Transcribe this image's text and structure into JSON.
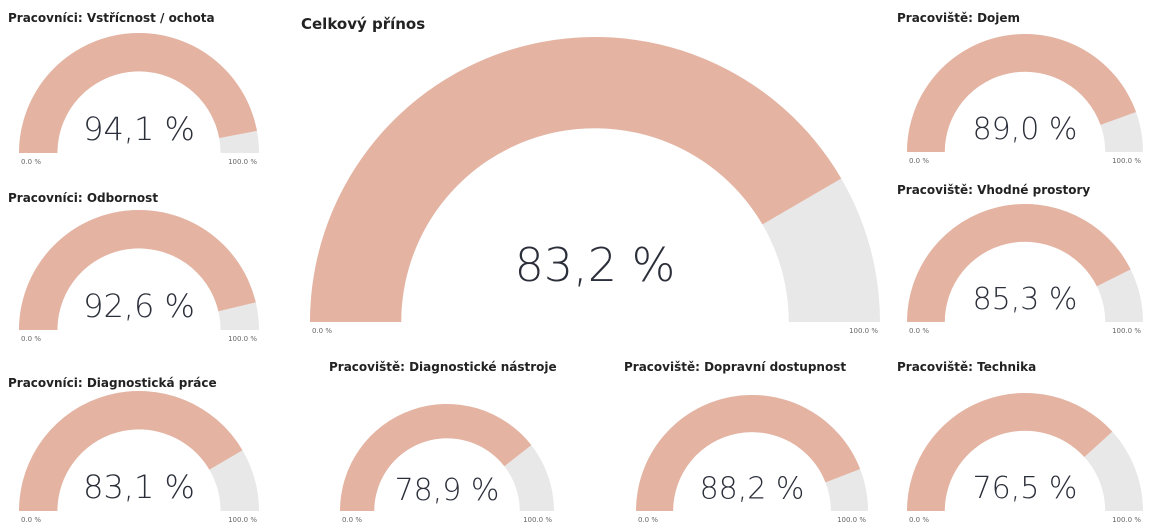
{
  "chart_data": [
    {
      "type": "gauge",
      "title": "Pracovníci: Vstřícnost / ochota",
      "value": 94.1,
      "value_label": "94,1 %",
      "ylim": [
        0,
        100
      ],
      "yticks": [
        {
          "value": 0,
          "label": "0.0 %"
        },
        {
          "value": 100,
          "label": "100.0 %"
        }
      ],
      "color": "#e5b3a1"
    },
    {
      "type": "gauge",
      "title": "Pracovníci: Odbornost",
      "value": 92.6,
      "value_label": "92,6 %",
      "ylim": [
        0,
        100
      ],
      "yticks": [
        {
          "value": 0,
          "label": "0.0 %"
        },
        {
          "value": 100,
          "label": "100.0 %"
        }
      ],
      "color": "#e5b3a1"
    },
    {
      "type": "gauge",
      "title": "Pracovníci: Diagnostická práce",
      "value": 83.1,
      "value_label": "83,1 %",
      "ylim": [
        0,
        100
      ],
      "yticks": [
        {
          "value": 0,
          "label": "0.0 %"
        },
        {
          "value": 100,
          "label": "100.0 %"
        }
      ],
      "color": "#e5b3a1"
    },
    {
      "type": "gauge",
      "title": "Celkový přínos",
      "value": 83.2,
      "value_label": "83,2 %",
      "ylim": [
        0,
        100
      ],
      "yticks": [
        {
          "value": 0,
          "label": "0.0 %"
        },
        {
          "value": 100,
          "label": "100.0 %"
        }
      ],
      "color": "#e5b3a1"
    },
    {
      "type": "gauge",
      "title": "Pracoviště: Diagnostické nástroje",
      "value": 78.9,
      "value_label": "78,9 %",
      "ylim": [
        0,
        100
      ],
      "yticks": [
        {
          "value": 0,
          "label": "0.0 %"
        },
        {
          "value": 100,
          "label": "100.0 %"
        }
      ],
      "color": "#e5b3a1"
    },
    {
      "type": "gauge",
      "title": "Pracoviště: Dopravní dostupnost",
      "value": 88.2,
      "value_label": "88,2 %",
      "ylim": [
        0,
        100
      ],
      "yticks": [
        {
          "value": 0,
          "label": "0.0 %"
        },
        {
          "value": 100,
          "label": "100.0 %"
        }
      ],
      "color": "#e5b3a1"
    },
    {
      "type": "gauge",
      "title": "Pracoviště: Dojem",
      "value": 89.0,
      "value_label": "89,0 %",
      "ylim": [
        0,
        100
      ],
      "yticks": [
        {
          "value": 0,
          "label": "0.0 %"
        },
        {
          "value": 100,
          "label": "100.0 %"
        }
      ],
      "color": "#e5b3a1"
    },
    {
      "type": "gauge",
      "title": "Pracoviště: Vhodné prostory",
      "value": 85.3,
      "value_label": "85,3 %",
      "ylim": [
        0,
        100
      ],
      "yticks": [
        {
          "value": 0,
          "label": "0.0 %"
        },
        {
          "value": 100,
          "label": "100.0 %"
        }
      ],
      "color": "#e5b3a1"
    },
    {
      "type": "gauge",
      "title": "Pracoviště: Technika",
      "value": 76.5,
      "value_label": "76,5 %",
      "ylim": [
        0,
        100
      ],
      "yticks": [
        {
          "value": 0,
          "label": "0.0 %"
        },
        {
          "value": 100,
          "label": "100.0 %"
        }
      ],
      "color": "#e5b3a1"
    }
  ]
}
